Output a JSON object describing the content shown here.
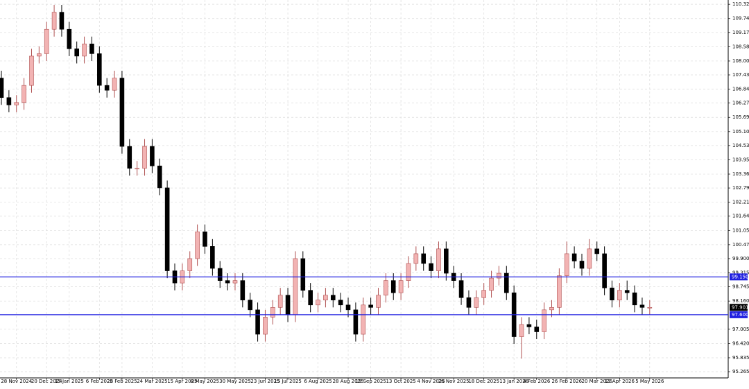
{
  "chart_data": {
    "type": "candlestick",
    "categories": [
      null,
      null,
      "28 Nov 2024",
      null,
      null,
      null,
      "20 Dec 2024",
      null,
      null,
      "15 Jan 2025",
      null,
      null,
      null,
      "6 Feb 2025",
      null,
      null,
      "28 Feb 2025",
      null,
      null,
      null,
      "24 Mar 2025",
      null,
      null,
      null,
      "15 Apr 2025",
      null,
      null,
      "8 May 2025",
      null,
      null,
      null,
      "30 May 2025",
      null,
      null,
      null,
      "23 Jun 2025",
      null,
      null,
      "15 Jul 2025",
      null,
      null,
      null,
      "6 Aug 2025",
      null,
      null,
      null,
      "28 Aug 2025",
      null,
      null,
      "19 Sep 2025",
      null,
      null,
      null,
      "13 Oct 2025",
      null,
      null,
      null,
      "4 Nov 2025",
      null,
      null,
      "26 Nov 2025",
      null,
      null,
      null,
      "18 Dec 2025",
      null,
      null,
      null,
      "13 Jan 2026",
      null,
      null,
      "4 Feb 2026",
      null,
      null,
      null,
      "26 Feb 2026",
      null,
      null,
      null,
      "20 Mar 2026",
      null,
      null,
      "13 Apr 2026",
      null,
      null,
      null,
      "5 May 2026"
    ],
    "open": [
      107.3,
      106.5,
      106.2,
      106.3,
      107.0,
      108.2,
      108.3,
      109.3,
      110.0,
      109.3,
      108.5,
      108.2,
      108.7,
      108.3,
      107.0,
      106.8,
      107.3,
      104.5,
      103.6,
      103.6,
      104.5,
      103.7,
      102.8,
      99.4,
      98.9,
      99.4,
      99.9,
      101.0,
      100.4,
      99.5,
      99.0,
      98.9,
      99.0,
      98.2,
      97.8,
      96.8,
      97.5,
      97.9,
      98.4,
      97.6,
      99.9,
      98.6,
      98.0,
      98.2,
      98.4,
      98.2,
      98.0,
      97.8,
      96.8,
      98.0,
      97.9,
      98.4,
      99.0,
      98.5,
      99.0,
      99.7,
      100.1,
      99.7,
      99.4,
      100.3,
      99.3,
      99.0,
      98.3,
      97.9,
      98.3,
      98.6,
      99.1,
      99.3,
      98.5,
      96.7,
      97.2,
      97.1,
      96.9,
      97.8,
      97.9,
      99.2,
      100.1,
      99.8,
      99.5,
      100.3,
      100.1,
      98.7,
      98.2,
      98.6,
      98.5,
      98.0,
      97.9
    ],
    "high": [
      107.6,
      106.8,
      106.6,
      107.3,
      108.5,
      108.6,
      109.6,
      110.3,
      110.3,
      109.6,
      108.8,
      109.0,
      109.0,
      108.6,
      107.3,
      107.6,
      107.6,
      104.8,
      103.9,
      104.8,
      104.8,
      104.0,
      103.1,
      99.7,
      99.7,
      100.2,
      101.3,
      101.3,
      100.7,
      99.8,
      99.3,
      99.3,
      99.3,
      98.5,
      98.1,
      97.8,
      98.2,
      98.7,
      98.7,
      100.2,
      100.2,
      98.9,
      98.5,
      98.7,
      98.7,
      98.5,
      98.3,
      98.1,
      98.3,
      98.3,
      98.7,
      99.3,
      99.3,
      99.3,
      100.0,
      100.4,
      100.4,
      100.0,
      100.6,
      100.6,
      99.6,
      99.3,
      98.6,
      98.6,
      98.9,
      99.4,
      99.6,
      99.6,
      98.8,
      97.5,
      97.5,
      97.4,
      98.1,
      98.2,
      99.5,
      100.6,
      100.4,
      100.1,
      100.7,
      100.6,
      100.4,
      99.0,
      98.9,
      99.0,
      98.8,
      98.3,
      98.2
    ],
    "low": [
      106.2,
      105.9,
      105.9,
      106.0,
      106.7,
      107.9,
      108.0,
      109.0,
      109.0,
      108.2,
      107.9,
      107.9,
      108.0,
      106.7,
      106.5,
      106.5,
      104.2,
      103.3,
      103.3,
      103.3,
      103.4,
      102.5,
      99.1,
      98.6,
      98.6,
      99.1,
      99.6,
      100.1,
      99.2,
      98.7,
      98.6,
      98.6,
      97.9,
      97.5,
      96.5,
      96.5,
      97.2,
      97.6,
      97.3,
      97.3,
      98.3,
      97.7,
      97.7,
      97.9,
      97.9,
      97.7,
      97.5,
      96.5,
      96.5,
      97.6,
      97.6,
      98.1,
      98.2,
      98.2,
      98.7,
      99.4,
      99.4,
      99.1,
      99.1,
      99.0,
      98.7,
      98.0,
      97.6,
      97.6,
      98.0,
      98.3,
      98.8,
      98.2,
      96.4,
      95.8,
      96.8,
      96.6,
      96.6,
      97.5,
      97.6,
      98.9,
      99.5,
      99.2,
      99.2,
      99.8,
      98.4,
      97.9,
      97.9,
      98.2,
      97.7,
      97.6,
      97.6
    ],
    "close": [
      106.5,
      106.2,
      106.3,
      107.0,
      108.2,
      108.3,
      109.3,
      110.0,
      109.3,
      108.5,
      108.2,
      108.7,
      108.3,
      107.0,
      106.8,
      107.3,
      104.5,
      103.6,
      103.6,
      104.5,
      103.7,
      102.8,
      99.4,
      98.9,
      99.4,
      99.9,
      101.0,
      100.4,
      99.5,
      99.0,
      98.9,
      99.0,
      98.2,
      97.8,
      96.8,
      97.5,
      97.9,
      98.4,
      97.6,
      99.9,
      98.6,
      98.0,
      98.2,
      98.4,
      98.2,
      98.0,
      97.8,
      96.8,
      98.0,
      97.9,
      98.4,
      99.0,
      98.5,
      99.0,
      99.7,
      100.1,
      99.7,
      99.4,
      100.3,
      99.3,
      99.0,
      98.3,
      97.9,
      98.3,
      98.6,
      99.1,
      99.3,
      98.5,
      96.7,
      97.2,
      97.1,
      96.9,
      97.8,
      97.9,
      99.2,
      100.1,
      99.8,
      99.5,
      100.3,
      100.1,
      98.7,
      98.2,
      98.6,
      98.5,
      98.0,
      97.9,
      97.901
    ],
    "up_color": "#f2b3b3",
    "up_edge": "#b05050",
    "down_color": "#000000",
    "ylim": [
      95.01,
      110.5
    ],
    "yticks": [
      110.325,
      {
        "value": 109.74,
        "label": "109.740"
      },
      {
        "value": 109.17,
        "label": "109.170"
      },
      108.585,
      {
        "value": 108,
        "label": "108.000"
      },
      {
        "value": 107.43,
        "label": "107.430"
      },
      106.845,
      106.275,
      {
        "value": 105.69,
        "label": "105.690"
      },
      105.105,
      104.535,
      {
        "value": 103.95,
        "label": "103.950"
      },
      103.365,
      102.795,
      {
        "value": 102.21,
        "label": "102.210"
      },
      {
        "value": 101.64,
        "label": "101.640"
      },
      101.055,
      {
        "value": 100.47,
        "label": "100.470"
      },
      {
        "value": 99.9,
        "label": "99.900"
      },
      99.315,
      98.745,
      {
        "value": 98.16,
        "label": "98.160"
      },
      97.005,
      {
        "value": 96.42,
        "label": "96.420"
      },
      95.835,
      95.265
    ],
    "grid": true,
    "hlines": [
      {
        "value": 99.15,
        "label": "99.150",
        "color": "#1f1fe0"
      },
      {
        "value": 97.6,
        "label": "97.600",
        "color": "#1f1fe0"
      }
    ],
    "last_price": 97.901
  }
}
